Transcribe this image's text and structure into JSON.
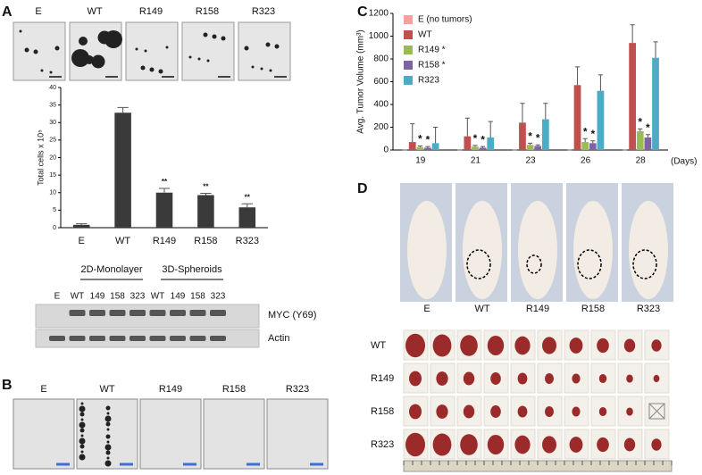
{
  "panel_labels": [
    "A",
    "B",
    "C",
    "D"
  ],
  "panel_a_images": [
    "E",
    "WT",
    "R149",
    "R158",
    "R323"
  ],
  "western_blot": {
    "groups": [
      "2D-Monolayer",
      "3D-Spheroids"
    ],
    "lanes": [
      "E",
      "WT",
      "149",
      "158",
      "323",
      "WT",
      "149",
      "158",
      "323"
    ],
    "bands": [
      "MYC (Y69)",
      "Actin"
    ]
  },
  "panel_b_images": [
    "E",
    "WT",
    "R149",
    "R158",
    "R323"
  ],
  "panel_d": {
    "mouse_labels": [
      "E",
      "WT",
      "R149",
      "R158",
      "R323"
    ],
    "tumor_rows": [
      "WT",
      "R149",
      "R158",
      "R323"
    ]
  },
  "chart_data": [
    {
      "type": "bar",
      "y_label": "Total cells x 10⁵",
      "categories": [
        "E",
        "WT",
        "R149",
        "R158",
        "R323"
      ],
      "values": [
        0.8,
        32.8,
        10,
        9.3,
        5.8
      ],
      "errors": [
        0.3,
        1.5,
        1.2,
        0.5,
        1
      ],
      "significance": [
        null,
        null,
        "**",
        "**",
        "**"
      ],
      "color": "#3a3a3a",
      "ylim": [
        0,
        40
      ],
      "yticks": [
        0,
        5,
        10,
        15,
        20,
        25,
        30,
        35,
        40
      ]
    },
    {
      "type": "bar",
      "y_label": "Avg. Tumor Volume (mm³)",
      "x_label": "(Days)",
      "categories": [
        "19",
        "21",
        "23",
        "26",
        "28"
      ],
      "ylim": [
        0,
        1200
      ],
      "yticks": [
        0,
        200,
        400,
        600,
        800,
        1000,
        1200
      ],
      "series": [
        {
          "name": "E (no tumors)",
          "color": "#f4a0a0",
          "values": [
            0,
            0,
            0,
            0,
            0
          ],
          "errors": [
            0,
            0,
            0,
            0,
            0
          ]
        },
        {
          "name": "WT",
          "color": "#c0504d",
          "values": [
            70,
            120,
            240,
            570,
            940
          ],
          "errors": [
            160,
            160,
            170,
            160,
            160
          ]
        },
        {
          "name": "R149 *",
          "color": "#9bbb59",
          "values": [
            25,
            30,
            45,
            70,
            165
          ],
          "errors": [
            10,
            10,
            15,
            30,
            20
          ],
          "annotations": [
            "*",
            "*",
            "*",
            "*",
            "*"
          ]
        },
        {
          "name": "R158 *",
          "color": "#8064a2",
          "values": [
            20,
            20,
            35,
            60,
            110
          ],
          "errors": [
            10,
            10,
            10,
            20,
            25
          ],
          "annotations": [
            "*",
            "*",
            "*",
            "*",
            "*"
          ]
        },
        {
          "name": "R323",
          "color": "#4bacc6",
          "values": [
            60,
            110,
            270,
            520,
            810
          ],
          "errors": [
            140,
            140,
            140,
            140,
            140
          ]
        }
      ]
    }
  ]
}
